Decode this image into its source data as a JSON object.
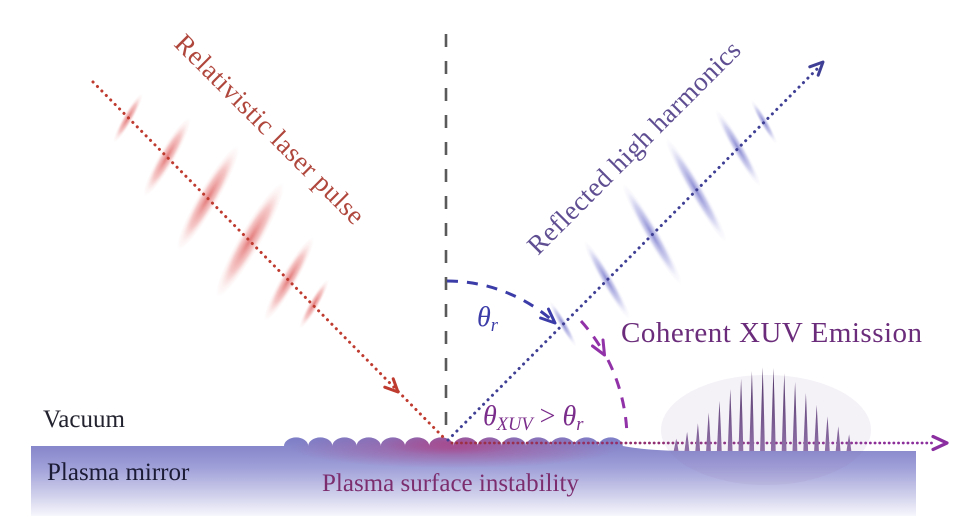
{
  "labels": {
    "incident_beam": "Relativistic laser pulse",
    "reflected_beam": "Reflected high harmonics",
    "xuv_emission_title": "Coherent XUV Emission",
    "vacuum_region": "Vacuum",
    "plasma_mirror_region": "Plasma mirror",
    "surface_instability": "Plasma surface instability"
  },
  "angles": {
    "theta_symbol": "θ",
    "r_subscript": "r",
    "xuv_subscript": "XUV",
    "comparison_operator": ">"
  },
  "colors": {
    "laser-red": "#bf3a2f",
    "laser-label": "#b0473d",
    "pulse-red": "#dd5a5a",
    "harmonics-indigo": "#3f3f95",
    "harmonics-label": "#5f4f92",
    "pulse-blue": "#6e6ec8",
    "normal-gray": "#5a5a5a",
    "angle-blue": "#3c3ca8",
    "xuv-arc": "#9232a8",
    "xuv-label": "#7b2d8b",
    "xuv-title": "#6b2d7b",
    "instability-label": "#7c2d6e",
    "vacuum-label": "#23232f",
    "mirror-label": "#1b1b35",
    "plasma-top": "#7f7fc7",
    "plasma-fade": "#f7f7fd",
    "plasma-hot": "#ae3e82",
    "spike-dark": "#4a2f60",
    "spike-light": "#9070a8"
  }
}
